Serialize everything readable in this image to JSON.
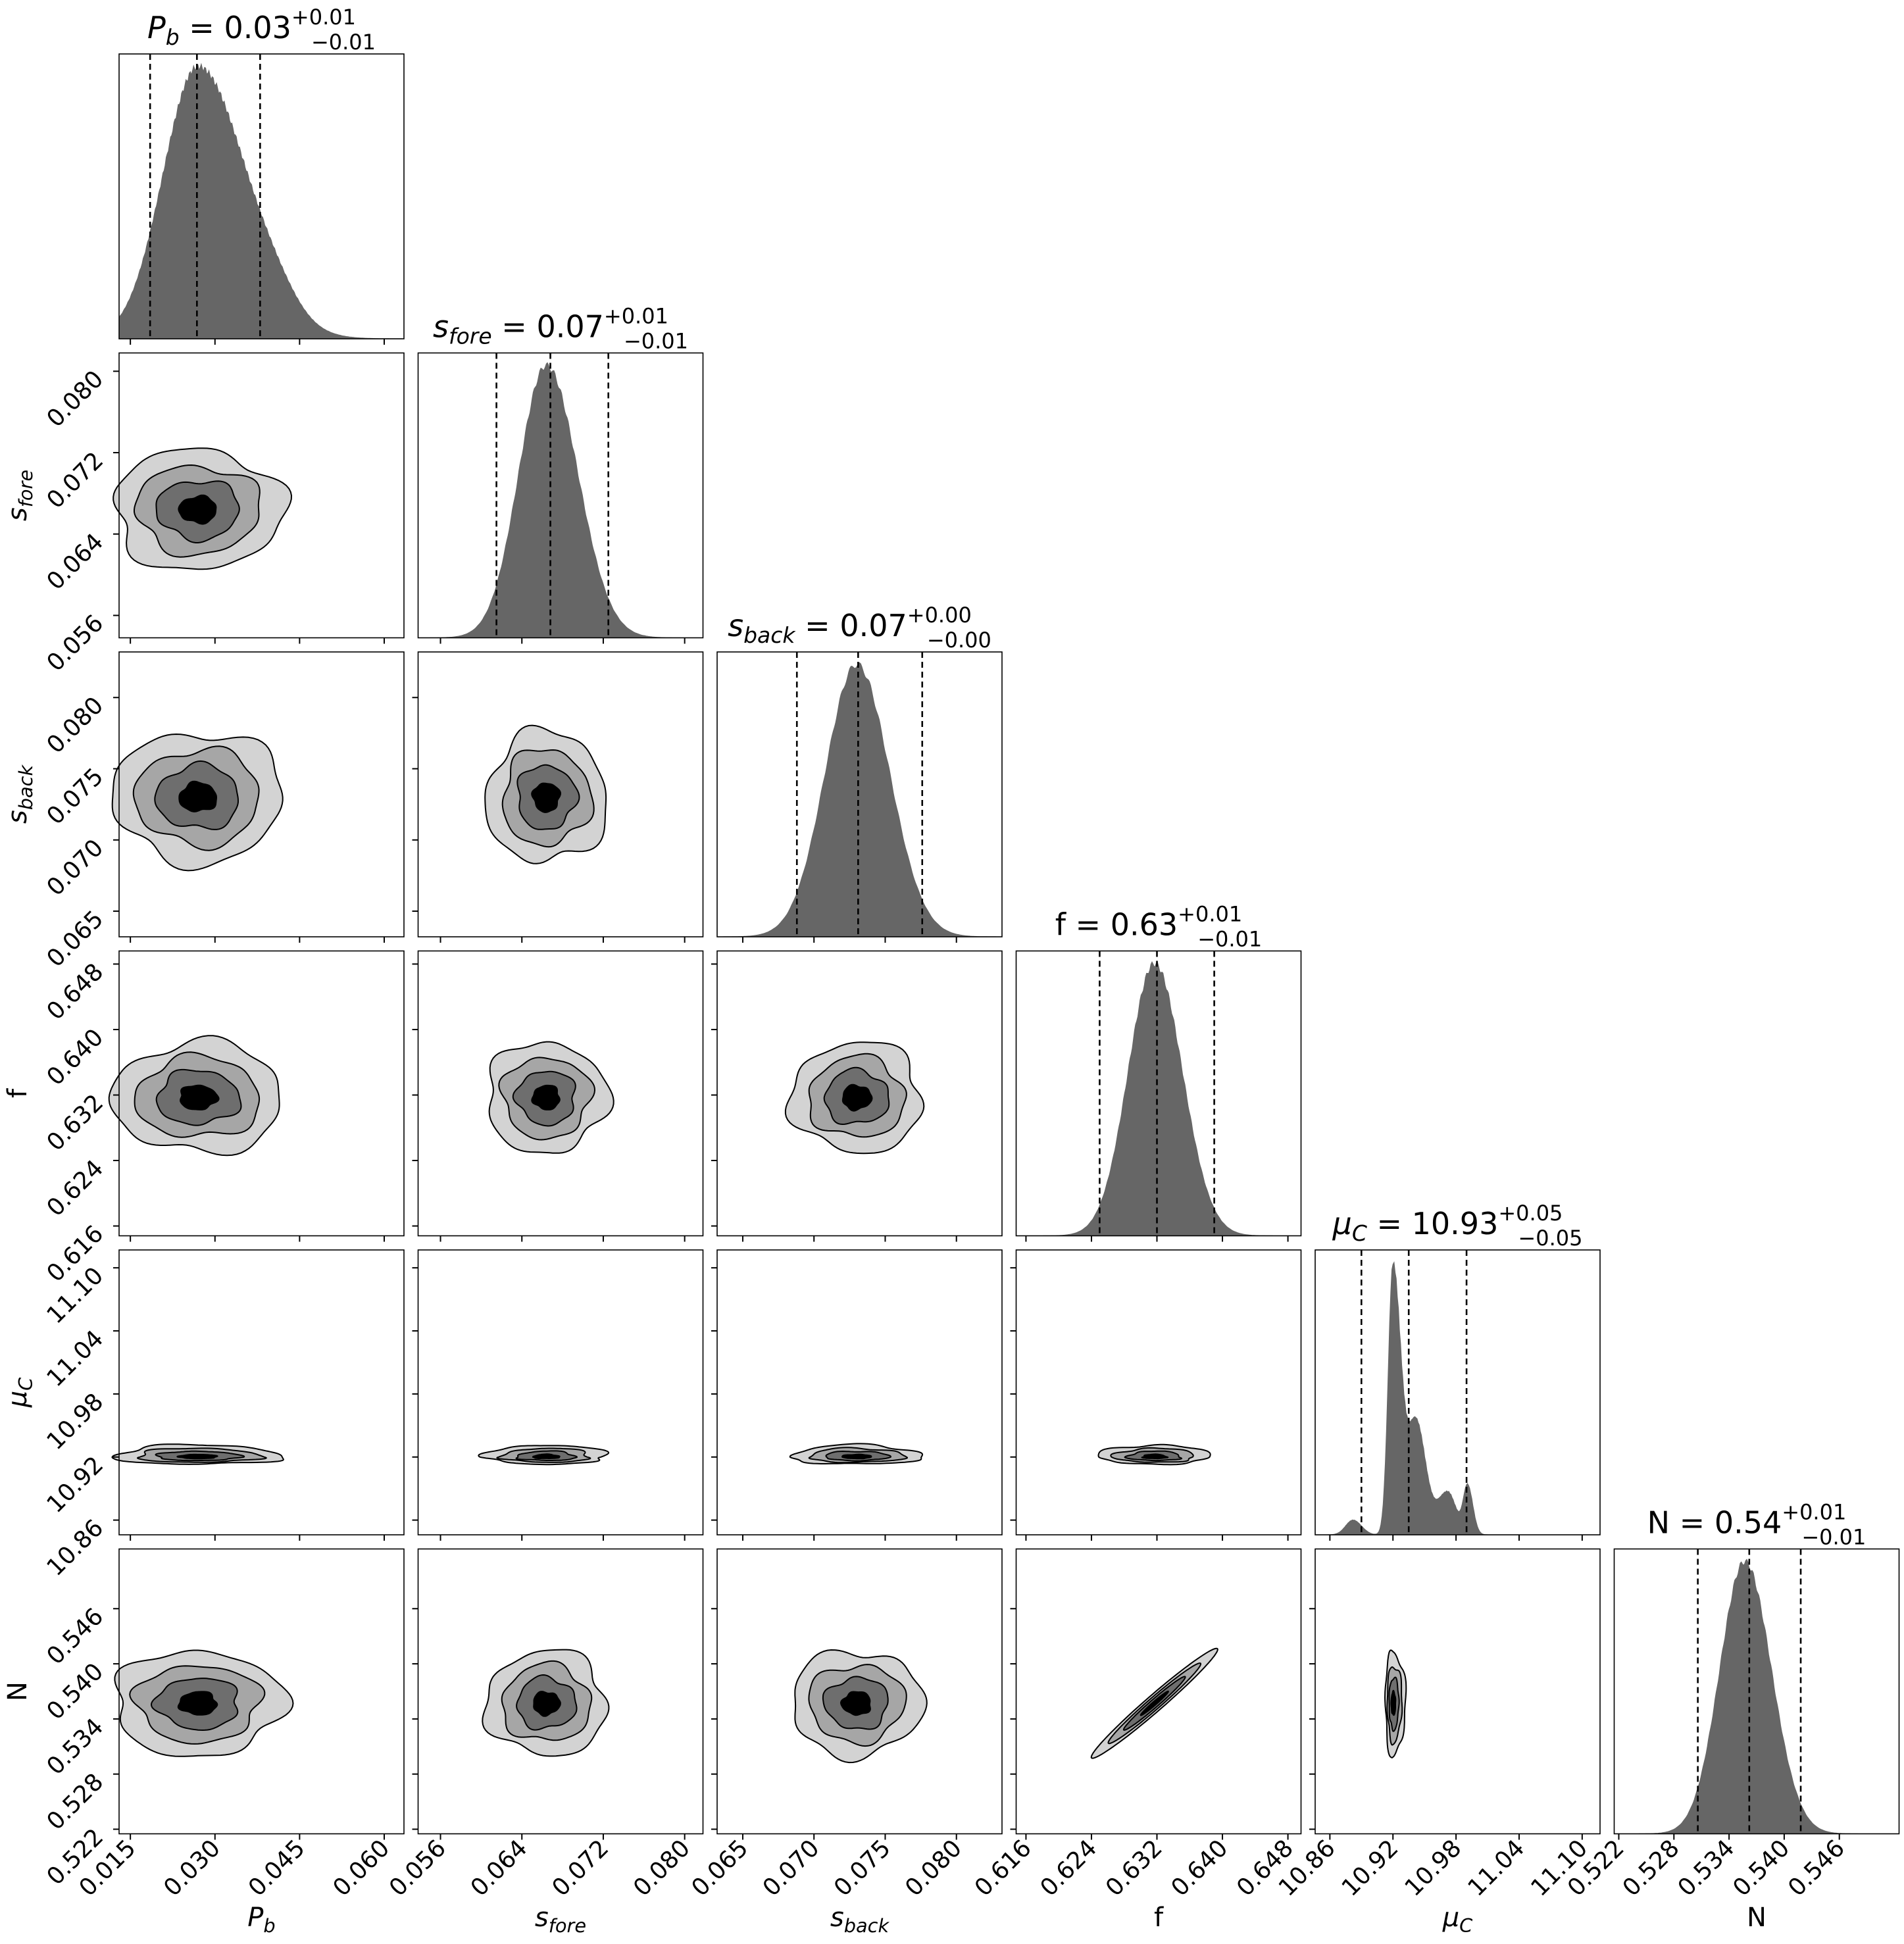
{
  "chart_data": {
    "type": "corner",
    "description": "MCMC posterior corner plot",
    "parameters": [
      {
        "key": "Pb",
        "title": {
          "pre": "",
          "sym": "P",
          "sub": "b",
          "post": " = 0.03",
          "sup": "+0.01",
          "subs": "−0.01"
        },
        "axis_label": {
          "sym": "P",
          "sub": "b"
        },
        "range": [
          0.013,
          0.0635
        ],
        "ticks": [
          0.015,
          0.03,
          0.045,
          0.06
        ],
        "tick_labels": [
          "0.015",
          "0.030",
          "0.045",
          "0.060"
        ],
        "quantiles": [
          0.0185,
          0.0268,
          0.038
        ],
        "hist": {
          "mode": 0.027,
          "sl": 0.0062,
          "sr": 0.0085,
          "tail": [
            0.041,
            0.0038,
            0.05
          ]
        }
      },
      {
        "key": "sfore",
        "title": {
          "pre": "",
          "sym": "s",
          "sub": "fore",
          "post": " = 0.07",
          "sup": "+0.01",
          "subs": "−0.01"
        },
        "axis_label": {
          "sym": "s",
          "sub": "fore"
        },
        "range": [
          0.0538,
          0.0818
        ],
        "ticks": [
          0.056,
          0.064,
          0.072,
          0.08
        ],
        "tick_labels": [
          "0.056",
          "0.064",
          "0.072",
          "0.080"
        ],
        "quantiles": [
          0.0615,
          0.0668,
          0.0725
        ],
        "hist": {
          "mode": 0.0664,
          "sl": 0.0027,
          "sr": 0.0031
        }
      },
      {
        "key": "sback",
        "title": {
          "pre": "",
          "sym": "s",
          "sub": "back",
          "post": " = 0.07",
          "sup": "+0.00",
          "subs": "−0.00"
        },
        "axis_label": {
          "sym": "s",
          "sub": "back"
        },
        "range": [
          0.0632,
          0.0832
        ],
        "ticks": [
          0.065,
          0.07,
          0.075,
          0.08
        ],
        "tick_labels": [
          "0.065",
          "0.070",
          "0.075",
          "0.080"
        ],
        "quantiles": [
          0.0688,
          0.0731,
          0.0776
        ],
        "hist": {
          "mode": 0.073,
          "sl": 0.0022,
          "sr": 0.0023
        }
      },
      {
        "key": "f",
        "title": {
          "pre": "f",
          "sym": "",
          "sub": "",
          "post": " = 0.63",
          "sup": "+0.01",
          "subs": "−0.01"
        },
        "axis_label": {
          "sym": "f",
          "sub": ""
        },
        "range": [
          0.6148,
          0.6496
        ],
        "ticks": [
          0.616,
          0.624,
          0.632,
          0.64,
          0.648
        ],
        "tick_labels": [
          "0.616",
          "0.624",
          "0.632",
          "0.640",
          "0.648"
        ],
        "quantiles": [
          0.625,
          0.632,
          0.639
        ],
        "hist": {
          "mode": 0.6317,
          "sl": 0.0032,
          "sr": 0.0034
        }
      },
      {
        "key": "muC",
        "title": {
          "pre": "",
          "sym": "μ",
          "sub": "C",
          "post": " = 10.93",
          "sup": "+0.05",
          "subs": "−0.05"
        },
        "axis_label": {
          "sym": "μ",
          "sub": "C"
        },
        "range": [
          10.846,
          11.117
        ],
        "ticks": [
          10.86,
          10.92,
          10.98,
          11.04,
          11.1
        ],
        "tick_labels": [
          "10.86",
          "10.92",
          "10.98",
          "11.04",
          "11.10"
        ],
        "quantiles": [
          10.89,
          10.935,
          10.99
        ],
        "hist": {
          "multi": [
            [
              10.92,
              0.0045,
              0.0075,
              1.0
            ],
            [
              10.942,
              0.008,
              0.009,
              0.42
            ],
            [
              10.972,
              0.01,
              0.008,
              0.16
            ],
            [
              10.991,
              0.004,
              0.005,
              0.18
            ],
            [
              10.882,
              0.007,
              0.008,
              0.055
            ]
          ]
        }
      },
      {
        "key": "N",
        "title": {
          "pre": "N",
          "sym": "",
          "sub": "",
          "post": " = 0.54",
          "sup": "+0.01",
          "subs": "−0.01"
        },
        "axis_label": {
          "sym": "N",
          "sub": ""
        },
        "range": [
          0.5215,
          0.5525
        ],
        "ticks": [
          0.522,
          0.528,
          0.534,
          0.54,
          0.546
        ],
        "tick_labels": [
          "0.522",
          "0.528",
          "0.534",
          "0.540",
          "0.546"
        ],
        "quantiles": [
          0.5306,
          0.5362,
          0.5418
        ],
        "hist": {
          "mode": 0.5357,
          "sl": 0.0027,
          "sr": 0.0029
        }
      }
    ],
    "contour_levels": [
      "0.5σ",
      "1σ",
      "1.5σ",
      "2σ"
    ],
    "colors": {
      "hist_fill": "#666666",
      "contour_fills": [
        "#d3d3d3",
        "#a6a6a6",
        "#6e6e6e",
        "#000000"
      ],
      "quantile_line": "#000000"
    }
  }
}
